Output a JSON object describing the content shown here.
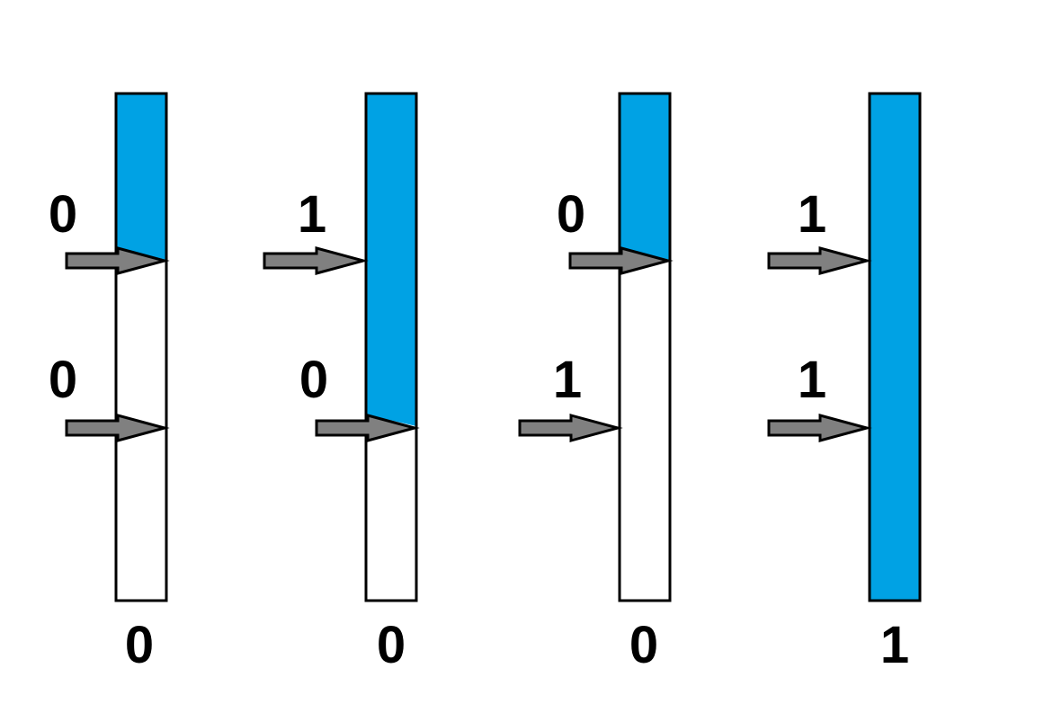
{
  "colors": {
    "fill": "#00a2e4",
    "arrow": "#808080",
    "outline": "#000000",
    "background": "#ffffff"
  },
  "icons": {
    "input": "right-arrow-icon"
  },
  "gates": [
    {
      "input_a": "0",
      "input_b": "0",
      "output": "0",
      "fill_level": 0.33
    },
    {
      "input_a": "1",
      "input_b": "0",
      "output": "0",
      "fill_level": 0.66
    },
    {
      "input_a": "0",
      "input_b": "1",
      "output": "0",
      "fill_level": 0.33
    },
    {
      "input_a": "1",
      "input_b": "1",
      "output": "1",
      "fill_level": 1.0
    }
  ]
}
